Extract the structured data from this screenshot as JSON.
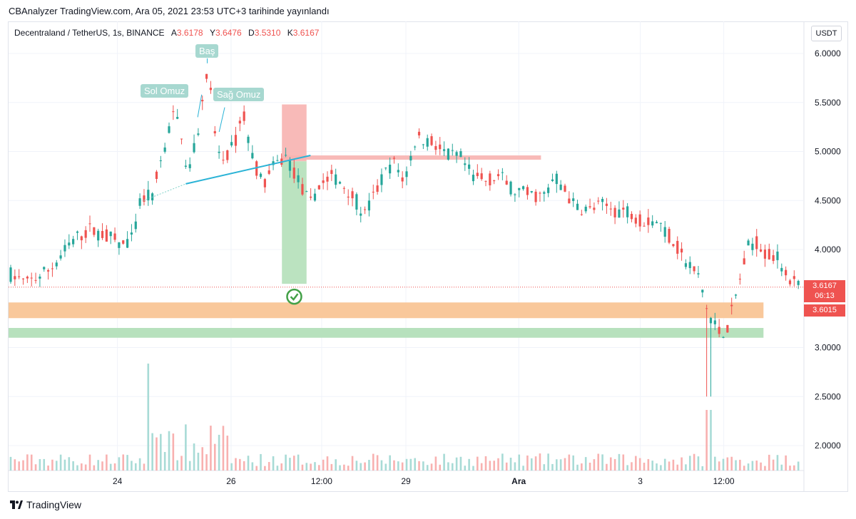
{
  "header": {
    "publish_line": "CBAnalyzer TradingView.com, Ara 05, 2021 23:53 UTC+3 tarihinde yayınlandı"
  },
  "legend": {
    "symbol": "Decentraland / TetherUS, 1s, BINANCE",
    "a_label": "A",
    "a_value": "3.6178",
    "y_label": "Y",
    "y_value": "3.6476",
    "d_label": "D",
    "d_value": "3.5310",
    "k_label": "K",
    "k_value": "3.6167"
  },
  "currency_button": "USDT",
  "annotations": {
    "head": "Baş",
    "left_shoulder": "Sol Omuz",
    "right_shoulder": "Sağ Omuz"
  },
  "price_tag": {
    "last_price": "3.6167",
    "countdown": "06:13",
    "second_price": "3.6015"
  },
  "footer": {
    "brand": "TradingView"
  },
  "colors": {
    "up": "#26a69a",
    "down": "#ef5350",
    "orange_zone": "#f9c89b",
    "green_zone": "#b7e1bd",
    "target_green": "#b7e1bd",
    "stop_red": "#f7b2b0",
    "neckline": "#2ab3d6"
  },
  "chart_data": {
    "type": "candlestick",
    "title": "Decentraland / TetherUS, 1s, BINANCE",
    "ylim": [
      1.75,
      6.2
    ],
    "y_ticks": [
      "6.0000",
      "5.5000",
      "5.0000",
      "4.5000",
      "4.0000",
      "3.0000",
      "2.5000",
      "2.0000"
    ],
    "y_tick_values": [
      6.0,
      5.5,
      5.0,
      4.5,
      4.0,
      3.0,
      2.5,
      2.0
    ],
    "x_ticks": [
      "24",
      "26",
      "12:00",
      "29",
      "Ara",
      "3",
      "12:00"
    ],
    "x_tick_positions": [
      0.137,
      0.28,
      0.394,
      0.5,
      0.642,
      0.795,
      0.9
    ],
    "last_price": 3.6167,
    "zones": [
      {
        "name": "orange-support",
        "from": 3.3,
        "to": 3.46
      },
      {
        "name": "green-support",
        "from": 3.1,
        "to": 3.2
      }
    ],
    "resistance": {
      "from": 4.92,
      "to": 4.96,
      "x_start": 0.344,
      "x_end": 0.67
    },
    "trade": {
      "entry": 4.9,
      "stop": 5.48,
      "target": 3.65,
      "x_start": 0.344,
      "x_end": 0.375
    },
    "neckline": {
      "x": [
        0.223,
        0.38
      ],
      "y": [
        4.67,
        4.96
      ]
    },
    "price_path": [
      [
        0.0,
        3.75
      ],
      [
        0.02,
        3.65
      ],
      [
        0.05,
        3.8
      ],
      [
        0.08,
        4.1
      ],
      [
        0.1,
        4.2
      ],
      [
        0.12,
        4.15
      ],
      [
        0.14,
        4.05
      ],
      [
        0.155,
        4.1
      ],
      [
        0.165,
        4.5
      ],
      [
        0.18,
        4.55
      ],
      [
        0.195,
        5.05
      ],
      [
        0.205,
        5.35
      ],
      [
        0.215,
        5.3
      ],
      [
        0.225,
        4.75
      ],
      [
        0.24,
        5.3
      ],
      [
        0.25,
        5.9
      ],
      [
        0.26,
        5.1
      ],
      [
        0.27,
        4.85
      ],
      [
        0.285,
        5.1
      ],
      [
        0.295,
        5.4
      ],
      [
        0.305,
        5.0
      ],
      [
        0.32,
        4.65
      ],
      [
        0.335,
        4.85
      ],
      [
        0.35,
        4.95
      ],
      [
        0.365,
        4.7
      ],
      [
        0.38,
        4.45
      ],
      [
        0.39,
        4.65
      ],
      [
        0.41,
        4.75
      ],
      [
        0.43,
        4.6
      ],
      [
        0.45,
        4.35
      ],
      [
        0.47,
        4.7
      ],
      [
        0.485,
        4.9
      ],
      [
        0.5,
        4.7
      ],
      [
        0.515,
        5.15
      ],
      [
        0.535,
        5.1
      ],
      [
        0.555,
        4.95
      ],
      [
        0.57,
        4.95
      ],
      [
        0.585,
        4.75
      ],
      [
        0.6,
        4.7
      ],
      [
        0.62,
        4.75
      ],
      [
        0.64,
        4.6
      ],
      [
        0.66,
        4.55
      ],
      [
        0.68,
        4.55
      ],
      [
        0.69,
        4.75
      ],
      [
        0.7,
        4.65
      ],
      [
        0.715,
        4.45
      ],
      [
        0.735,
        4.4
      ],
      [
        0.75,
        4.45
      ],
      [
        0.77,
        4.4
      ],
      [
        0.785,
        4.4
      ],
      [
        0.8,
        4.3
      ],
      [
        0.82,
        4.3
      ],
      [
        0.84,
        4.1
      ],
      [
        0.855,
        3.9
      ],
      [
        0.875,
        3.7
      ],
      [
        0.885,
        3.35
      ],
      [
        0.9,
        3.15
      ],
      [
        0.91,
        3.2
      ],
      [
        0.92,
        3.5
      ],
      [
        0.935,
        4.0
      ],
      [
        0.945,
        4.1
      ],
      [
        0.96,
        3.95
      ],
      [
        0.975,
        3.9
      ],
      [
        0.99,
        3.7
      ],
      [
        1.0,
        3.62
      ]
    ]
  }
}
